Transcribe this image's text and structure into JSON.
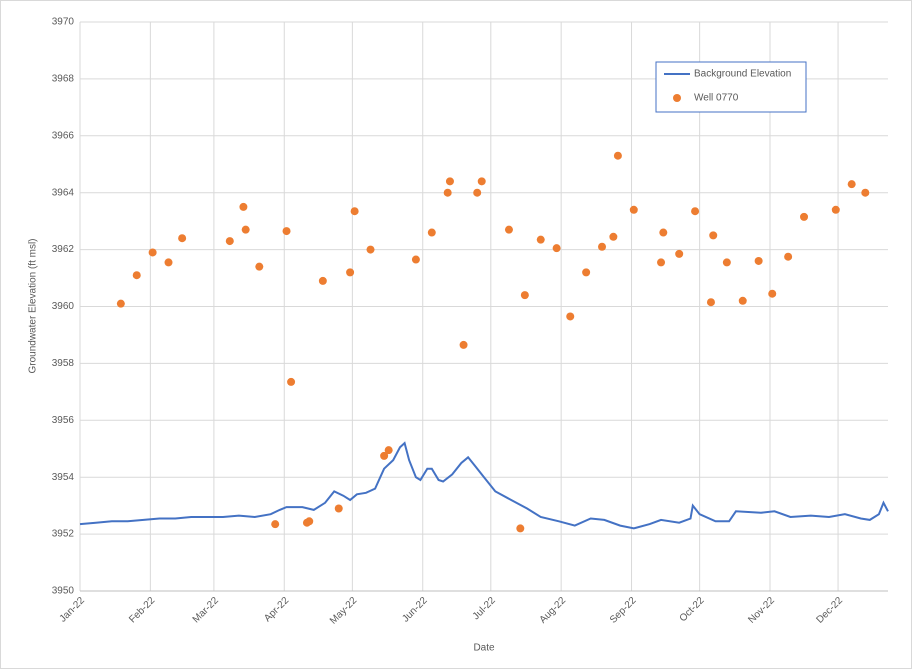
{
  "chart_data": {
    "type": "line",
    "xlabel": "Date",
    "ylabel": "Groundwater Elevation (ft msl)",
    "xlim": [
      0,
      356
    ],
    "xticks": [
      {
        "value": 0,
        "label": "Jan-22"
      },
      {
        "value": 31,
        "label": "Feb-22"
      },
      {
        "value": 59,
        "label": "Mar-22"
      },
      {
        "value": 90,
        "label": "Apr-22"
      },
      {
        "value": 120,
        "label": "May-22"
      },
      {
        "value": 151,
        "label": "Jun-22"
      },
      {
        "value": 181,
        "label": "Jul-22"
      },
      {
        "value": 212,
        "label": "Aug-22"
      },
      {
        "value": 243,
        "label": "Sep-22"
      },
      {
        "value": 273,
        "label": "Oct-22"
      },
      {
        "value": 304,
        "label": "Nov-22"
      },
      {
        "value": 334,
        "label": "Dec-22"
      }
    ],
    "ylim": [
      3950,
      3970
    ],
    "yticks": [
      3950,
      3952,
      3954,
      3956,
      3958,
      3960,
      3962,
      3964,
      3966,
      3968,
      3970
    ],
    "grid": true,
    "legend": "upper right",
    "series": [
      {
        "name": "Background Elevation",
        "type": "line",
        "color": "#4472c4",
        "x": [
          0,
          7,
          14,
          21,
          28,
          35,
          42,
          49,
          56,
          63,
          70,
          77,
          84,
          88,
          91,
          98,
          103,
          108,
          112,
          116,
          119,
          122,
          126,
          130,
          134,
          138,
          141,
          143,
          145,
          148,
          150,
          153,
          155,
          158,
          160,
          164,
          168,
          171,
          174,
          178,
          183,
          190,
          197,
          203,
          211,
          218,
          225,
          231,
          238,
          244,
          251,
          256,
          264,
          269,
          270,
          273,
          280,
          286,
          289,
          300,
          306,
          313,
          322,
          330,
          337,
          344,
          348,
          352,
          354,
          356
        ],
        "values": [
          3952.35,
          3952.4,
          3952.45,
          3952.45,
          3952.5,
          3952.55,
          3952.55,
          3952.6,
          3952.6,
          3952.6,
          3952.65,
          3952.6,
          3952.7,
          3952.85,
          3952.95,
          3952.95,
          3952.85,
          3953.1,
          3953.5,
          3953.35,
          3953.2,
          3953.4,
          3953.45,
          3953.6,
          3954.3,
          3954.6,
          3955.05,
          3955.2,
          3954.6,
          3954.0,
          3953.9,
          3954.3,
          3954.3,
          3953.9,
          3953.85,
          3954.1,
          3954.5,
          3954.7,
          3954.4,
          3954.0,
          3953.5,
          3953.2,
          3952.9,
          3952.6,
          3952.45,
          3952.3,
          3952.55,
          3952.5,
          3952.3,
          3952.2,
          3952.35,
          3952.5,
          3952.4,
          3952.55,
          3953.0,
          3952.7,
          3952.45,
          3952.45,
          3952.8,
          3952.75,
          3952.8,
          3952.6,
          3952.65,
          3952.6,
          3952.7,
          3952.55,
          3952.5,
          3952.7,
          3953.1,
          3952.8
        ]
      },
      {
        "name": "Well 0770",
        "type": "scatter",
        "color": "#ed7d31",
        "x": [
          18,
          25,
          32,
          39,
          45,
          66,
          72,
          73,
          79,
          86,
          91,
          93,
          100,
          101,
          107,
          114,
          119,
          121,
          128,
          134,
          136,
          148,
          155,
          162,
          163,
          169,
          175,
          177,
          189,
          194,
          196,
          203,
          210,
          216,
          223,
          230,
          235,
          237,
          244,
          256,
          257,
          264,
          271,
          278,
          279,
          285,
          292,
          299,
          305,
          312,
          319,
          333,
          340,
          346
        ],
        "values": [
          3960.1,
          3961.1,
          3961.9,
          3961.55,
          3962.4,
          3962.3,
          3963.5,
          3962.7,
          3961.4,
          3952.35,
          3962.65,
          3957.35,
          3952.4,
          3952.45,
          3960.9,
          3952.9,
          3961.2,
          3963.35,
          3962.0,
          3954.75,
          3954.95,
          3961.65,
          3962.6,
          3964.0,
          3964.4,
          3958.65,
          3964.0,
          3964.4,
          3962.7,
          3952.2,
          3960.4,
          3962.35,
          3962.05,
          3959.65,
          3961.2,
          3962.1,
          3962.45,
          3965.3,
          3963.4,
          3961.55,
          3962.6,
          3961.85,
          3963.35,
          3960.15,
          3962.5,
          3961.55,
          3960.2,
          3961.6,
          3960.45,
          3961.75,
          3963.15,
          3963.4,
          3964.3,
          3964.0
        ]
      }
    ]
  }
}
